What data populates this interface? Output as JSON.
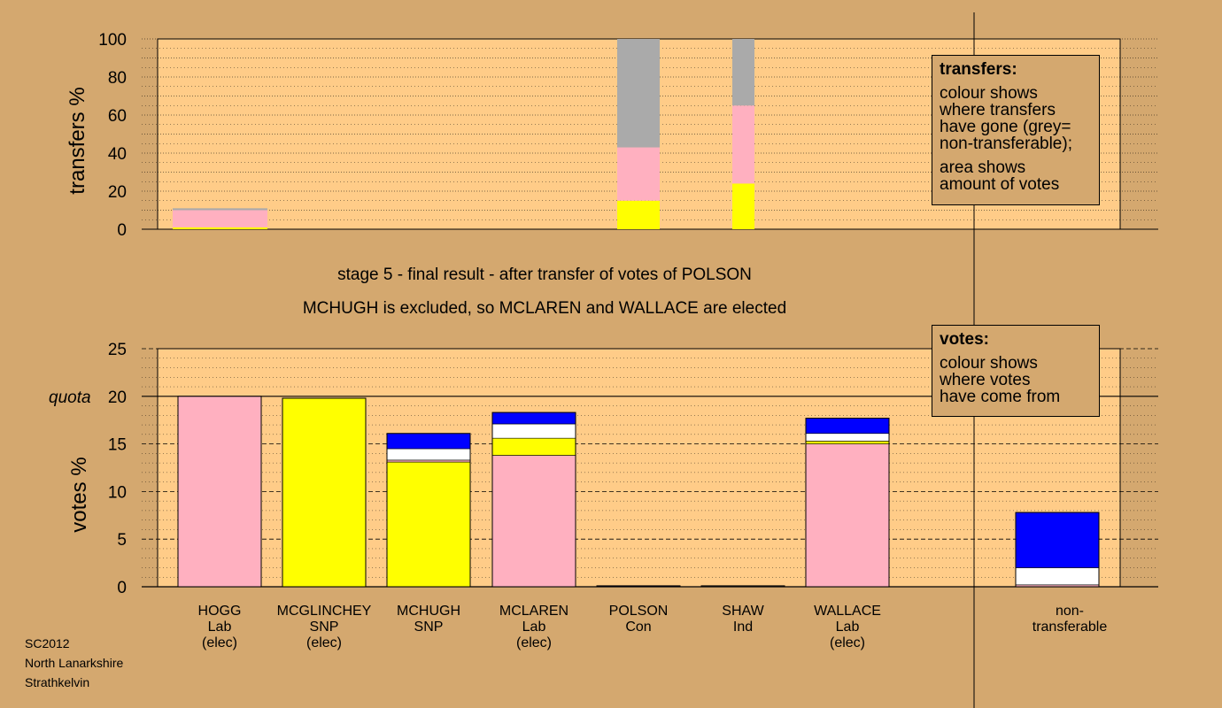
{
  "top_chart": {
    "ylabel": "transfers %",
    "ticks": [
      "0",
      "20",
      "40",
      "60",
      "80",
      "100"
    ]
  },
  "stage_title": "stage 5 - final result - after transfer of votes of POLSON",
  "stage_subtitle": "MCHUGH is excluded, so MCLAREN and WALLACE are elected",
  "bottom_chart": {
    "ylabel": "votes %",
    "ticks": [
      "0",
      "5",
      "10",
      "15",
      "20",
      "25"
    ],
    "quota_label": "quota"
  },
  "legend_transfers": {
    "title": "transfers:",
    "line1": "colour shows\nwhere transfers\nhave gone (grey=\nnon-transferable);",
    "line2": "area shows\namount of votes"
  },
  "legend_votes": {
    "title": "votes:",
    "line1": "colour shows\nwhere votes\nhave come from"
  },
  "candidates": [
    {
      "name": "HOGG",
      "party": "Lab",
      "status": "(elec)"
    },
    {
      "name": "MCGLINCHEY",
      "party": "SNP",
      "status": "(elec)"
    },
    {
      "name": "MCHUGH",
      "party": "SNP",
      "status": ""
    },
    {
      "name": "MCLAREN",
      "party": "Lab",
      "status": "(elec)"
    },
    {
      "name": "POLSON",
      "party": "Con",
      "status": ""
    },
    {
      "name": "SHAW",
      "party": "Ind",
      "status": ""
    },
    {
      "name": "WALLACE",
      "party": "Lab",
      "status": "(elec)"
    }
  ],
  "nontransferable": {
    "line1": "non-",
    "line2": "transferable"
  },
  "footer": {
    "line1": "SC2012",
    "line2": "North Lanarkshire",
    "line3": "Strathkelvin"
  },
  "colors": {
    "background": "#d4a86f",
    "plot_bg": "#ffcc88",
    "Lab": "#ffb0c0",
    "SNP": "#ffff00",
    "Con": "#0000ff",
    "Ind": "#ffffff",
    "nontransferable": "#aaaaaa"
  },
  "chart_data": [
    {
      "type": "bar",
      "title": "",
      "ylabel": "transfers %",
      "ylim": [
        0,
        100
      ],
      "stacked": true,
      "bars": [
        {
          "candidate": "HOGG",
          "segments": [
            {
              "color": "SNP",
              "value": 1
            },
            {
              "color": "Lab",
              "value": 9
            },
            {
              "color": "nontransferable",
              "value": 1
            }
          ]
        },
        {
          "candidate": "POLSON",
          "segments": [
            {
              "color": "SNP",
              "value": 15
            },
            {
              "color": "Lab",
              "value": 28
            },
            {
              "color": "nontransferable",
              "value": 57
            }
          ]
        },
        {
          "candidate": "SHAW",
          "segments": [
            {
              "color": "SNP",
              "value": 24
            },
            {
              "color": "Lab",
              "value": 41
            },
            {
              "color": "nontransferable",
              "value": 35
            }
          ]
        }
      ]
    },
    {
      "type": "bar",
      "title": "",
      "ylabel": "votes %",
      "ylim": [
        0,
        25
      ],
      "quota": 20,
      "stacked": true,
      "categories": [
        "HOGG",
        "MCGLINCHEY",
        "MCHUGH",
        "MCLAREN",
        "POLSON",
        "SHAW",
        "WALLACE",
        "non-transferable"
      ],
      "bars": [
        {
          "candidate": "HOGG",
          "segments": [
            {
              "color": "Lab",
              "value": 20.0
            }
          ]
        },
        {
          "candidate": "MCGLINCHEY",
          "segments": [
            {
              "color": "SNP",
              "value": 19.8
            }
          ]
        },
        {
          "candidate": "MCHUGH",
          "segments": [
            {
              "color": "SNP",
              "value": 13.1
            },
            {
              "color": "Lab",
              "value": 0.2
            },
            {
              "color": "Ind",
              "value": 1.2
            },
            {
              "color": "Con",
              "value": 1.6
            }
          ]
        },
        {
          "candidate": "MCLAREN",
          "segments": [
            {
              "color": "Lab",
              "value": 13.8
            },
            {
              "color": "SNP",
              "value": 1.8
            },
            {
              "color": "Ind",
              "value": 1.5
            },
            {
              "color": "Con",
              "value": 1.2
            }
          ]
        },
        {
          "candidate": "POLSON",
          "segments": [
            {
              "color": "Con",
              "value": 0.1
            }
          ]
        },
        {
          "candidate": "SHAW",
          "segments": [
            {
              "color": "Ind",
              "value": 0.1
            }
          ]
        },
        {
          "candidate": "WALLACE",
          "segments": [
            {
              "color": "Lab",
              "value": 15.0
            },
            {
              "color": "SNP",
              "value": 0.3
            },
            {
              "color": "Ind",
              "value": 0.8
            },
            {
              "color": "Con",
              "value": 1.6
            }
          ]
        },
        {
          "candidate": "non-transferable",
          "segments": [
            {
              "color": "Lab",
              "value": 0.2
            },
            {
              "color": "Ind",
              "value": 1.8
            },
            {
              "color": "Con",
              "value": 5.8
            }
          ]
        }
      ]
    }
  ]
}
